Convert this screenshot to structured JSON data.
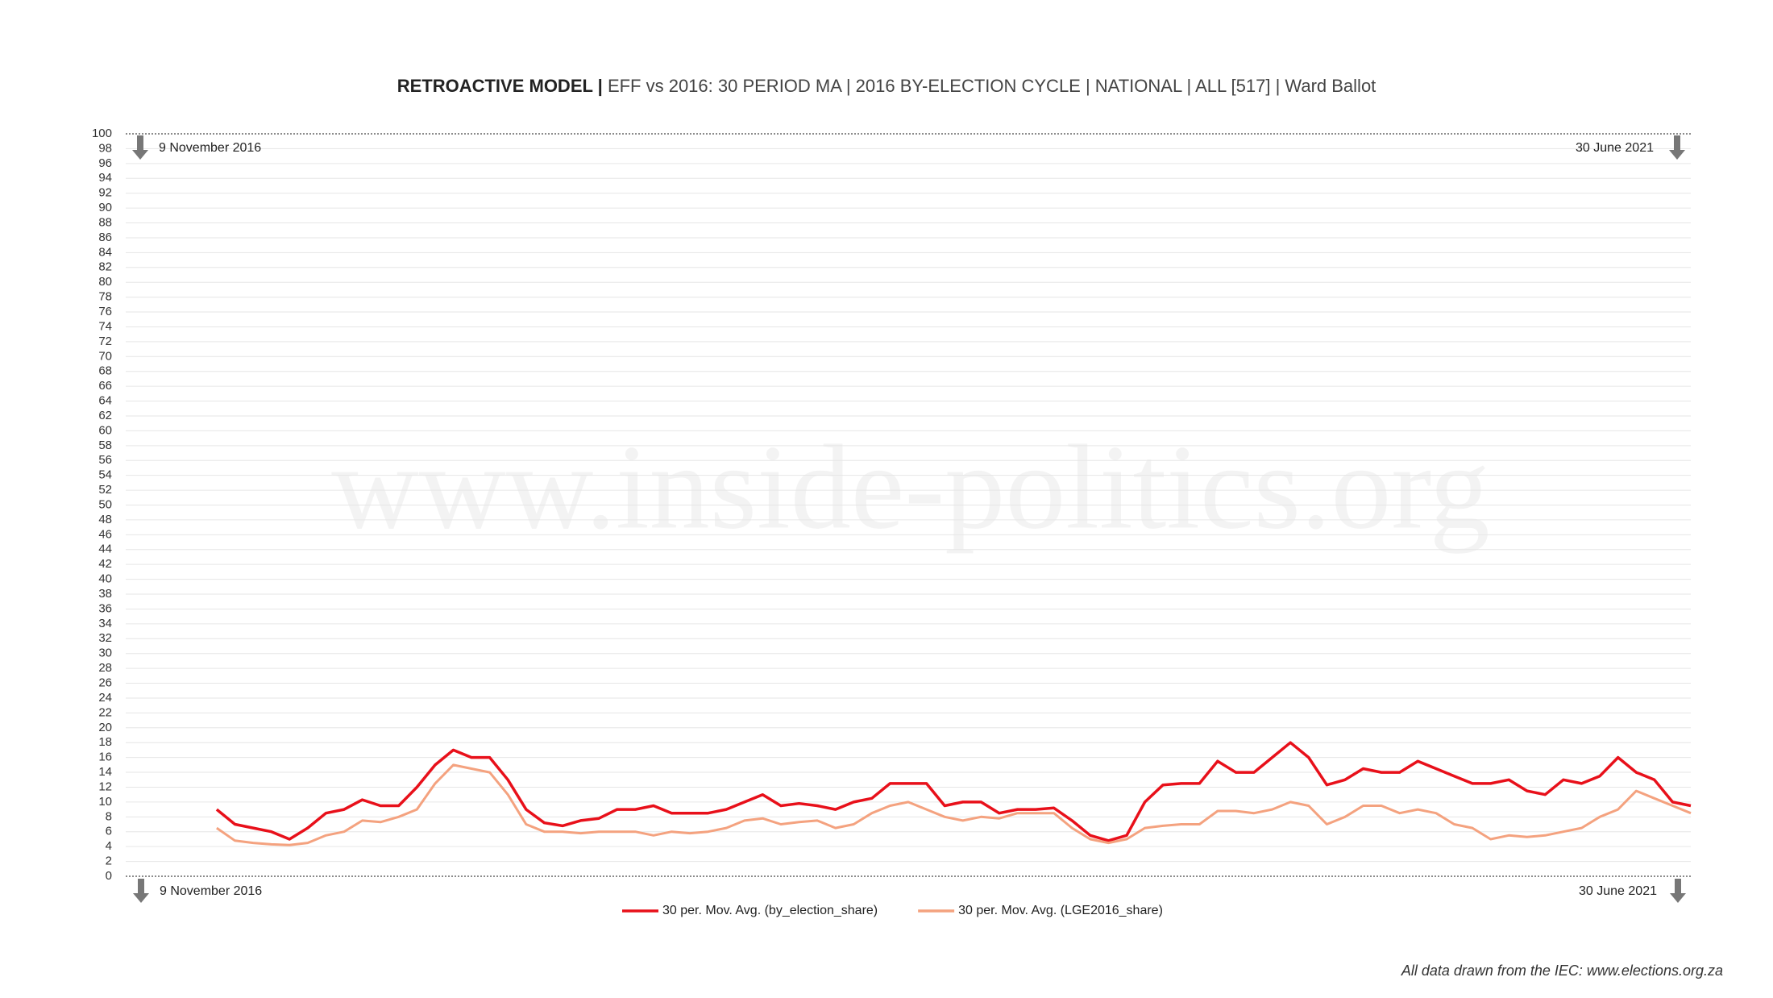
{
  "chart_data": {
    "type": "line",
    "title": "RETROACTIVE MODEL |",
    "subtitle": "EFF vs 2016: 30 PERIOD MA | 2016 BY-ELECTION CYCLE | NATIONAL | ALL [517] | Ward Ballot",
    "annotations": [
      "9 November 2016",
      "30 June 2021"
    ],
    "watermark": "www.inside-politics.org",
    "footer": "All data drawn from the IEC: www.elections.org.za",
    "x": [
      30,
      36,
      42,
      48,
      54,
      60,
      66,
      72,
      78,
      84,
      90,
      96,
      102,
      108,
      114,
      120,
      126,
      132,
      138,
      144,
      150,
      156,
      162,
      168,
      174,
      180,
      186,
      192,
      198,
      204,
      210,
      216,
      222,
      228,
      234,
      240,
      246,
      252,
      258,
      264,
      270,
      276,
      282,
      288,
      294,
      300,
      306,
      312,
      318,
      324,
      330,
      336,
      342,
      348,
      354,
      360,
      366,
      372,
      378,
      384,
      390,
      396,
      402,
      408,
      414,
      420,
      426,
      432,
      438,
      444,
      450,
      456,
      462,
      468,
      474,
      480,
      486,
      492,
      498,
      504,
      510,
      516
    ],
    "xlim": [
      0,
      516
    ],
    "ylim": [
      0,
      100
    ],
    "yticks": [
      0,
      2,
      4,
      6,
      8,
      10,
      12,
      14,
      16,
      18,
      20,
      22,
      24,
      26,
      28,
      30,
      32,
      34,
      36,
      38,
      40,
      42,
      44,
      46,
      48,
      50,
      52,
      54,
      56,
      58,
      60,
      62,
      64,
      66,
      68,
      70,
      72,
      74,
      76,
      78,
      80,
      82,
      84,
      86,
      88,
      90,
      92,
      94,
      96,
      98,
      100
    ],
    "grid": true,
    "legend": "bottom",
    "series": [
      {
        "name": "30 per. Mov. Avg. (by_election_share)",
        "color": "#e8101a",
        "values": [
          9,
          7,
          6.5,
          6,
          5,
          6.5,
          8.5,
          9,
          10.3,
          9.5,
          9.5,
          12,
          15,
          17,
          16,
          16,
          13,
          9,
          7.2,
          6.8,
          7.5,
          7.8,
          9,
          9,
          9.5,
          8.5,
          8.5,
          8.5,
          9,
          10,
          11,
          9.5,
          9.8,
          9.5,
          9,
          10,
          10.5,
          12.5,
          12.5,
          12.5,
          9.5,
          10,
          10,
          8.5,
          9,
          9,
          9.2,
          7.5,
          5.5,
          4.8,
          5.5,
          10,
          12.3,
          12.5,
          12.5,
          15.5,
          14,
          14,
          16,
          18,
          16,
          12.3,
          13,
          14.5,
          14,
          14,
          15.5,
          14.5,
          13.5,
          12.5,
          12.5,
          13,
          11.5,
          11,
          13,
          12.5,
          13.5,
          16,
          14,
          13,
          10,
          9.5
        ]
      },
      {
        "name": "30 per. Mov. Avg. (LGE2016_share)",
        "color": "#f4a27f",
        "values": [
          6.5,
          4.8,
          4.5,
          4.3,
          4.2,
          4.5,
          5.5,
          6,
          7.5,
          7.3,
          8,
          9,
          12.5,
          15,
          14.5,
          14,
          11,
          7,
          6,
          6,
          5.8,
          6,
          6,
          6,
          5.5,
          6,
          5.8,
          6,
          6.5,
          7.5,
          7.8,
          7,
          7.3,
          7.5,
          6.5,
          7,
          8.5,
          9.5,
          10,
          9,
          8,
          7.5,
          8,
          7.8,
          8.5,
          8.5,
          8.5,
          6.5,
          5,
          4.5,
          5,
          6.5,
          6.8,
          7,
          7,
          8.8,
          8.8,
          8.5,
          9,
          10,
          9.5,
          7,
          8,
          9.5,
          9.5,
          8.5,
          9,
          8.5,
          7,
          6.5,
          5,
          5.5,
          5.3,
          5.5,
          6,
          6.5,
          8,
          9,
          11.5,
          10.5,
          9.5,
          8.5
        ]
      }
    ]
  }
}
